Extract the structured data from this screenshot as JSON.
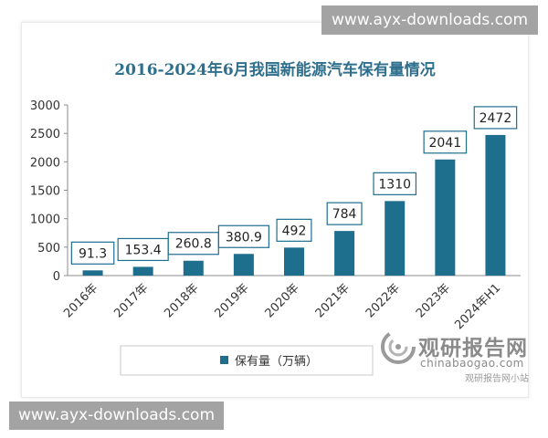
{
  "watermarks": {
    "top": "www.ayx-downloads.com",
    "bottom": "www.ayx-downloads.com"
  },
  "logo": {
    "name": "观研报告网",
    "domain": "chinabaogao.com",
    "mini": "观研报告网小站"
  },
  "colors": {
    "bar": "#1e6e8e",
    "title": "#2f6f8e",
    "axis": "#8c8c8c",
    "label_border": "#1e6e8e"
  },
  "chart_data": {
    "type": "bar",
    "title": "2016-2024年6月我国新能源汽车保有量情况",
    "categories": [
      "2016年",
      "2017年",
      "2018年",
      "2019年",
      "2020年",
      "2021年",
      "2022年",
      "2023年",
      "2024年H1"
    ],
    "series": [
      {
        "name": "保有量（万辆）",
        "values": [
          91.3,
          153.4,
          260.8,
          380.9,
          492,
          784,
          1310,
          2041,
          2472
        ],
        "labels": [
          "91.3",
          "153.4",
          "260.8",
          "380.9",
          "492",
          "784",
          "1310",
          "2041",
          "2472"
        ]
      }
    ],
    "ylim": [
      0,
      3000
    ],
    "yticks": [
      0,
      500,
      1000,
      1500,
      2000,
      2500,
      3000
    ],
    "ytick_labels": [
      "0",
      "500",
      "1000",
      "1500",
      "2000",
      "2500",
      "3000"
    ],
    "xlabel": "",
    "ylabel": "",
    "grid": false,
    "legend_position": "bottom"
  }
}
